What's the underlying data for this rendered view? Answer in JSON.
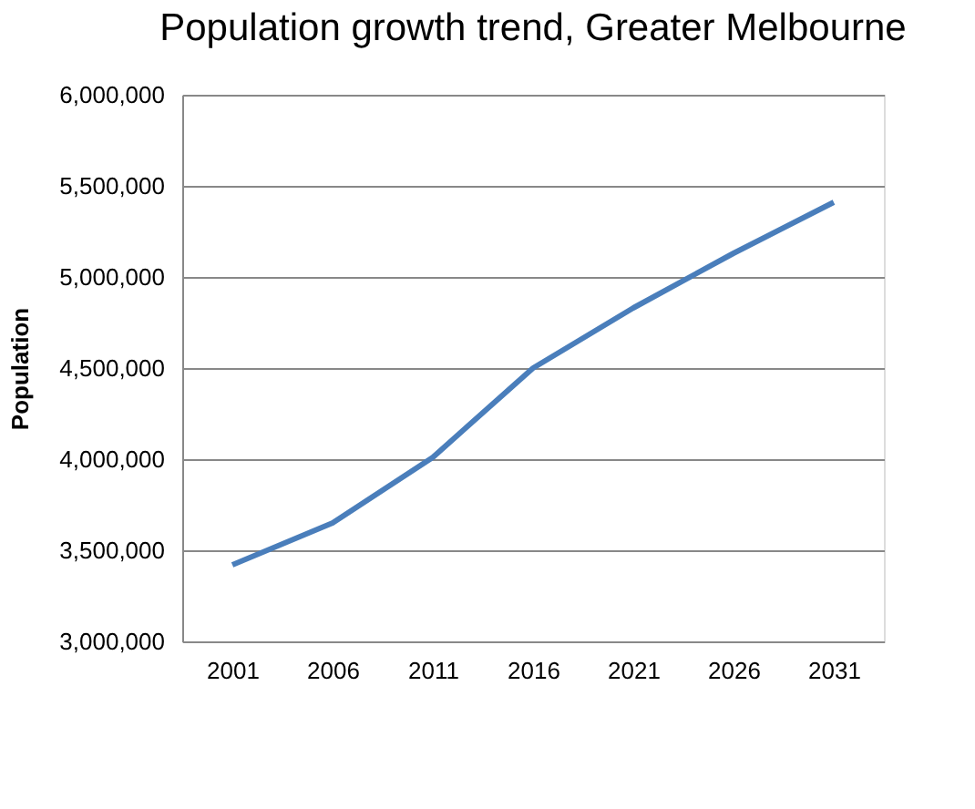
{
  "chart_data": {
    "type": "line",
    "title": "Population growth trend, Greater Melbourne",
    "ylabel": "Population",
    "categories": [
      "2001",
      "2006",
      "2011",
      "2016",
      "2021",
      "2026",
      "2031"
    ],
    "series": [
      {
        "color": "#4a7ebb",
        "values": [
          3420000,
          3650000,
          4010000,
          4500000,
          4830000,
          5130000,
          5410000
        ]
      }
    ],
    "ylim": [
      3000000,
      6000000
    ],
    "yticks": [
      {
        "value": 3000000,
        "label": "3,000,000"
      },
      {
        "value": 3500000,
        "label": "3,500,000"
      },
      {
        "value": 4000000,
        "label": "4,000,000"
      },
      {
        "value": 4500000,
        "label": "4,500,000"
      },
      {
        "value": 5000000,
        "label": "5,000,000"
      },
      {
        "value": 5500000,
        "label": "5,500,000"
      },
      {
        "value": 6000000,
        "label": "6,000,000"
      }
    ],
    "grid": "y",
    "marker": "none",
    "line_style": "solid"
  }
}
